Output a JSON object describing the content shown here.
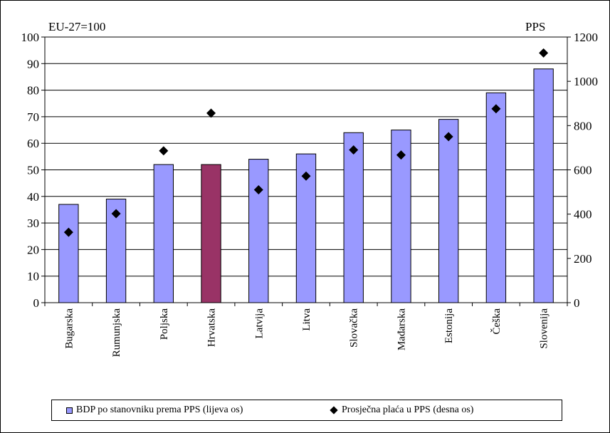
{
  "chart_data": {
    "type": "bar",
    "left_axis_title": "EU-27=100",
    "right_axis_title": "PPS",
    "categories": [
      "Bugarska",
      "Rumunjska",
      "Poljska",
      "Hrvatska",
      "Latvija",
      "Litva",
      "Slovačka",
      "Mađarska",
      "Estonija",
      "Češka",
      "Slovenija"
    ],
    "series": [
      {
        "name": "BDP po stanovniku prema PPS (lijeva os)",
        "type": "bar",
        "axis": "left",
        "values": [
          37,
          39,
          52,
          52,
          54,
          56,
          64,
          65,
          69,
          79,
          88
        ],
        "color": "#9999ff",
        "highlight_color": "#993366",
        "highlight_category": "Hrvatska"
      },
      {
        "name": "Prosječna plaća u PPS (desna os)",
        "type": "scatter",
        "axis": "right",
        "marker": "diamond",
        "values": [
          318,
          402,
          686,
          856,
          510,
          572,
          690,
          667,
          750,
          876,
          1128
        ],
        "color": "#000000"
      }
    ],
    "y_left": {
      "min": 0,
      "max": 100,
      "ticks": [
        0,
        10,
        20,
        30,
        40,
        50,
        60,
        70,
        80,
        90,
        100
      ]
    },
    "y_right": {
      "min": 0,
      "max": 1200,
      "ticks": [
        0,
        200,
        400,
        600,
        800,
        1000,
        1200
      ]
    },
    "grid": true,
    "legend_position": "bottom"
  }
}
